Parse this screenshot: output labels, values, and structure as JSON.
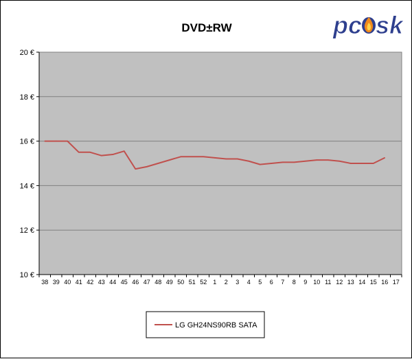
{
  "chart_data": {
    "type": "line",
    "title": "DVD±RW",
    "xlabel": "",
    "ylabel": "",
    "ylim": [
      10,
      20
    ],
    "yticks": [
      "10 €",
      "12 €",
      "14 €",
      "16 €",
      "18 €",
      "20 €"
    ],
    "ytick_values": [
      10,
      12,
      14,
      16,
      18,
      20
    ],
    "grid": true,
    "legend_position": "bottom-center",
    "categories": [
      "38",
      "39",
      "40",
      "41",
      "42",
      "43",
      "44",
      "45",
      "46",
      "47",
      "48",
      "49",
      "50",
      "51",
      "52",
      "1",
      "2",
      "3",
      "4",
      "5",
      "6",
      "7",
      "8",
      "9",
      "10",
      "11",
      "12",
      "13",
      "14",
      "15",
      "16",
      "17"
    ],
    "series": [
      {
        "name": "LG GH24NS90RB SATA",
        "color": "#c0504d",
        "values": [
          16.0,
          16.0,
          16.0,
          15.5,
          15.5,
          15.35,
          15.4,
          15.55,
          14.75,
          14.85,
          15.0,
          15.15,
          15.3,
          15.3,
          15.3,
          15.25,
          15.2,
          15.2,
          15.1,
          14.95,
          15.0,
          15.05,
          15.05,
          15.1,
          15.15,
          15.15,
          15.1,
          15.0,
          15.0,
          15.0,
          15.25,
          null
        ]
      }
    ]
  },
  "logo": {
    "text_left": "pc",
    "text_right": "sk"
  },
  "colors": {
    "plot_background": "#c0c0c0",
    "gridline": "#808080",
    "line": "#c0504d",
    "logo_blue": "#2e3f8e",
    "logo_flame": "#f08a1c"
  }
}
